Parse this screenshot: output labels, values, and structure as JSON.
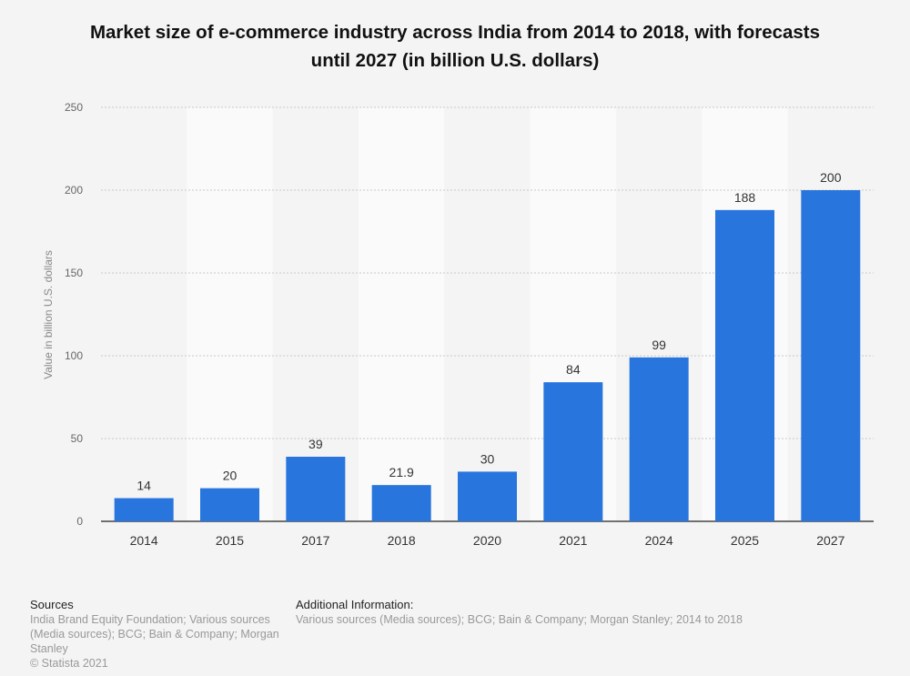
{
  "title": {
    "line1": "Market size of e-commerce industry across India from 2014 to 2018, with forecasts",
    "line2": "until 2027 (in billion U.S. dollars)"
  },
  "colors": {
    "bar": "#2875dd",
    "band": "#fafafa",
    "grid": "#c8c8c8"
  },
  "chart_data": {
    "type": "bar",
    "categories": [
      "2014",
      "2015",
      "2017",
      "2018",
      "2020",
      "2021",
      "2024",
      "2025",
      "2027"
    ],
    "values": [
      14,
      20,
      39,
      21.9,
      30,
      84,
      99,
      188,
      200
    ],
    "value_labels": [
      "14",
      "20",
      "39",
      "21.9",
      "30",
      "84",
      "99",
      "188",
      "200"
    ],
    "ylabel": "Value in billion U.S. dollars",
    "xlabel": "",
    "ylim": [
      0,
      250
    ],
    "yticks": [
      0,
      50,
      100,
      150,
      200,
      250
    ],
    "grid": true,
    "legend": "none"
  },
  "footer": {
    "sources_heading": "Sources",
    "sources_line1": "India Brand Equity Foundation; Various sources",
    "sources_line2": "(Media sources); BCG; Bain & Company; Morgan",
    "sources_line3": "Stanley",
    "copyright": "© Statista 2021",
    "additional_heading": "Additional Information:",
    "additional_text": "Various sources (Media sources); BCG; Bain & Company; Morgan Stanley; 2014 to 2018"
  }
}
